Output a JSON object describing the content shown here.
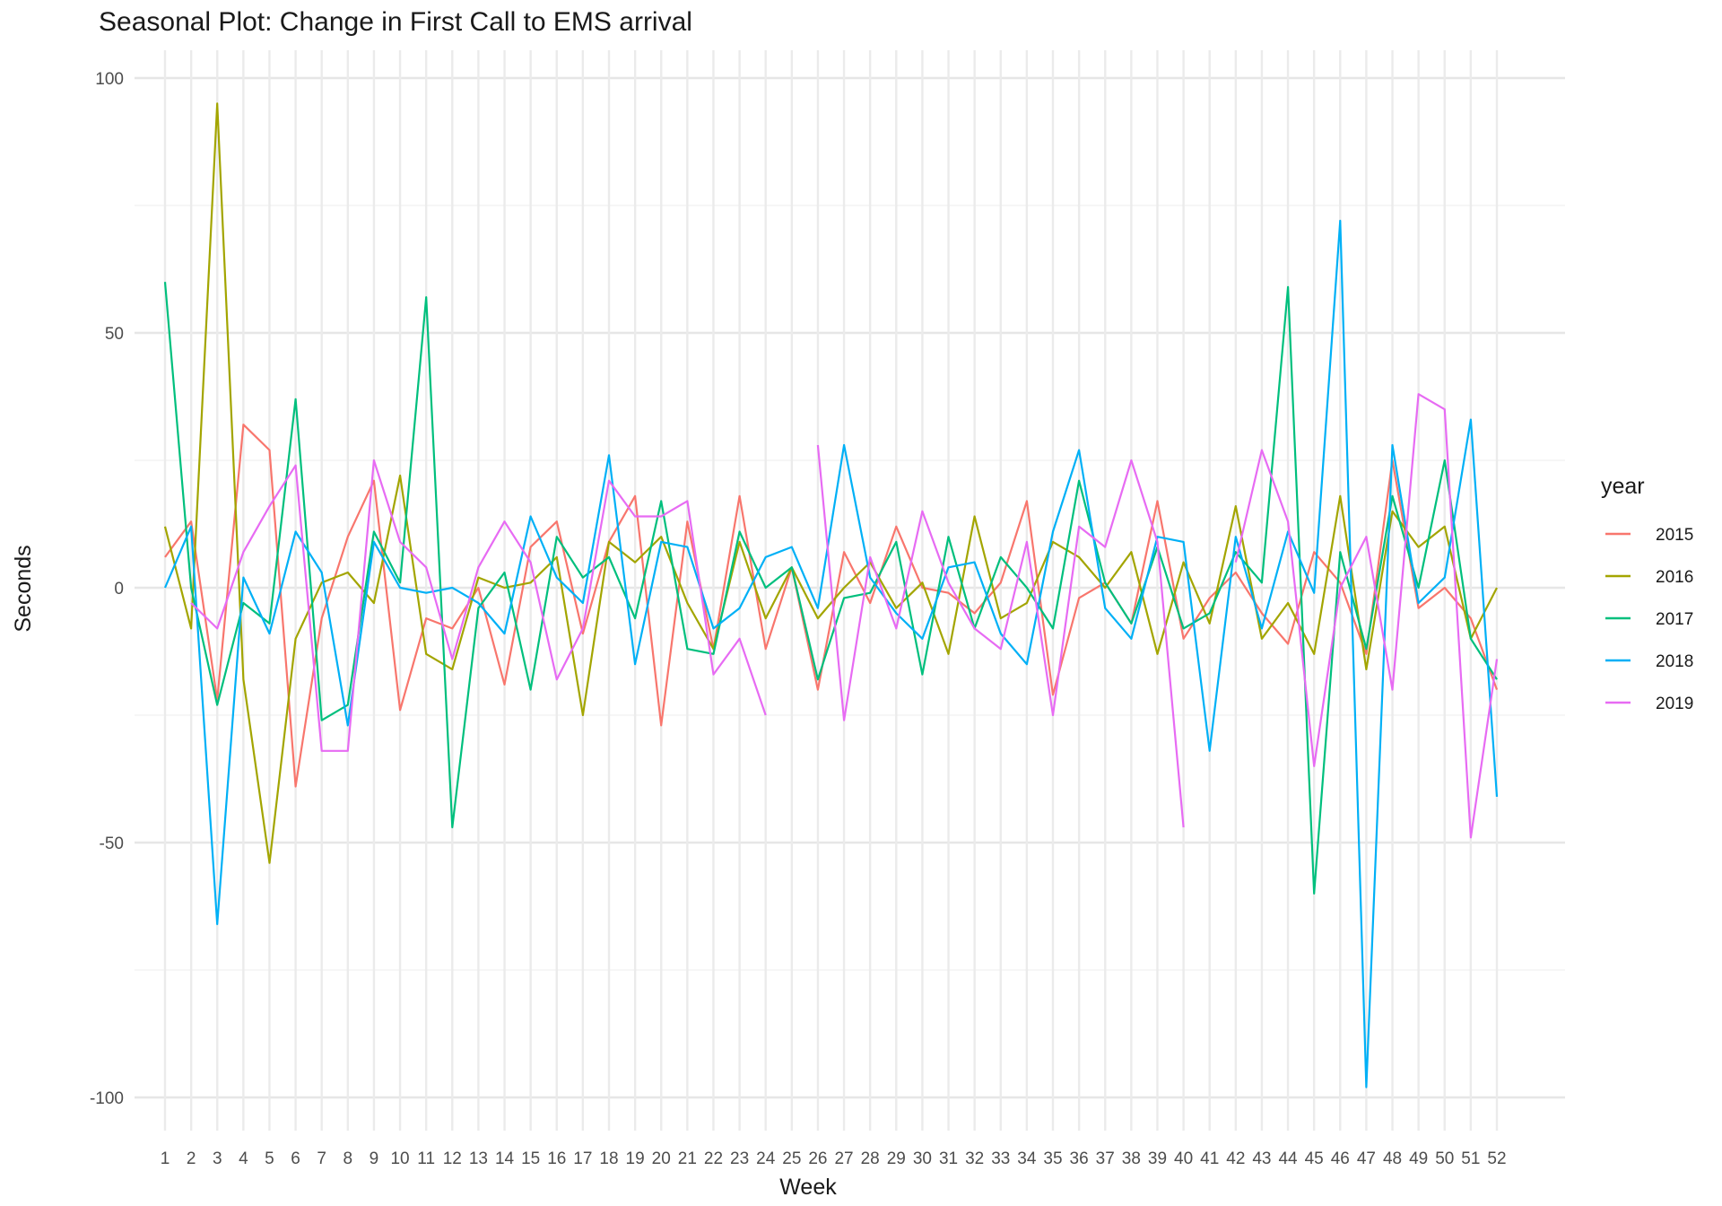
{
  "chart_data": {
    "type": "line",
    "title": "Seasonal Plot: Change in First Call to EMS arrival",
    "xlabel": "Week",
    "ylabel": "Seconds",
    "legend_title": "year",
    "legend_position": "right",
    "grid": true,
    "ylim": [
      -107,
      107
    ],
    "y_ticks": [
      100,
      50,
      0,
      -50,
      -100
    ],
    "x": [
      1,
      2,
      3,
      4,
      5,
      6,
      7,
      8,
      9,
      10,
      11,
      12,
      13,
      14,
      15,
      16,
      17,
      18,
      19,
      20,
      21,
      22,
      23,
      24,
      25,
      26,
      27,
      28,
      29,
      30,
      31,
      32,
      33,
      34,
      35,
      36,
      37,
      38,
      39,
      40,
      41,
      42,
      43,
      44,
      45,
      46,
      47,
      48,
      49,
      50,
      51,
      52
    ],
    "series": [
      {
        "name": "2015",
        "color": "#F8766D",
        "values": [
          6,
          13,
          -22,
          32,
          27,
          -39,
          -6,
          10,
          21,
          -24,
          -6,
          -8,
          0,
          -19,
          8,
          13,
          -9,
          9,
          18,
          -27,
          13,
          -12,
          18,
          -12,
          4,
          -20,
          7,
          -3,
          12,
          0,
          -1,
          -5,
          1,
          17,
          -21,
          -2,
          1,
          -7,
          17,
          -10,
          -2,
          3,
          -5,
          -11,
          7,
          1,
          -13,
          25,
          -4,
          0,
          -6,
          -20
        ]
      },
      {
        "name": "2016",
        "color": "#A3A500",
        "values": [
          12,
          -8,
          95,
          -18,
          -54,
          -10,
          1,
          3,
          -3,
          22,
          -13,
          -16,
          2,
          0,
          1,
          6,
          -25,
          9,
          5,
          10,
          -3,
          -12,
          9,
          -6,
          4,
          -6,
          0,
          5,
          -4,
          1,
          -13,
          14,
          -6,
          -3,
          9,
          6,
          0,
          7,
          -13,
          5,
          -7,
          16,
          -10,
          -3,
          -13,
          18,
          -16,
          15,
          8,
          12,
          -10,
          0
        ]
      },
      {
        "name": "2017",
        "color": "#00BF7D",
        "values": [
          60,
          0,
          -23,
          -3,
          -7,
          37,
          -26,
          -23,
          11,
          1,
          57,
          -47,
          -4,
          3,
          -20,
          10,
          2,
          6,
          -6,
          17,
          -12,
          -13,
          11,
          0,
          4,
          -18,
          -2,
          -1,
          9,
          -17,
          10,
          -8,
          6,
          0,
          -8,
          21,
          1,
          -7,
          8,
          -8,
          -5,
          7,
          1,
          59,
          -60,
          7,
          -12,
          18,
          0,
          25,
          -10,
          -18
        ]
      },
      {
        "name": "2018",
        "color": "#00B0F6",
        "values": [
          0,
          12,
          -66,
          2,
          -9,
          11,
          3,
          -27,
          9,
          0,
          -1,
          0,
          -3,
          -9,
          14,
          2,
          -3,
          26,
          -15,
          9,
          8,
          -8,
          -4,
          6,
          8,
          -4,
          28,
          2,
          -5,
          -10,
          4,
          5,
          -9,
          -15,
          11,
          27,
          -4,
          -10,
          10,
          9,
          -32,
          10,
          -8,
          11,
          -1,
          72,
          -98,
          28,
          -3,
          2,
          33,
          -41
        ]
      },
      {
        "name": "2019",
        "color": "#E76BF3",
        "values": [
          null,
          -3,
          -8,
          7,
          16,
          24,
          -32,
          -32,
          25,
          9,
          4,
          -14,
          4,
          13,
          5,
          -18,
          -8,
          21,
          14,
          14,
          17,
          -17,
          -10,
          -25,
          null,
          28,
          -26,
          6,
          -8,
          15,
          1,
          -8,
          -12,
          9,
          -25,
          12,
          8,
          25,
          9,
          -47,
          null,
          5,
          27,
          13,
          -35,
          0,
          10,
          -20,
          38,
          35,
          -49,
          -14
        ]
      }
    ]
  }
}
